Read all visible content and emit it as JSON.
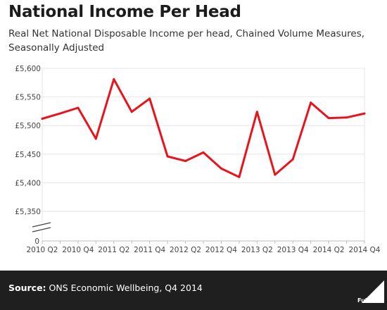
{
  "chart_data": {
    "type": "line",
    "title": "National Income Per Head",
    "subtitle": "Real Net National Disposable Income per head, Chained Volume Measures, Seasonally Adjusted",
    "x": [
      "2010 Q2",
      "2010 Q3",
      "2010 Q4",
      "2011 Q1",
      "2011 Q2",
      "2011 Q3",
      "2011 Q4",
      "2012 Q1",
      "2012 Q2",
      "2012 Q3",
      "2012 Q4",
      "2013 Q1",
      "2013 Q2",
      "2013 Q3",
      "2013 Q4",
      "2014 Q1",
      "2014 Q2",
      "2014 Q3",
      "2014 Q4"
    ],
    "x_tick_labels": [
      "2010 Q2",
      "2010 Q4",
      "2011 Q2",
      "2011 Q4",
      "2012 Q2",
      "2012 Q4",
      "2013 Q2",
      "2013 Q4",
      "2014 Q2",
      "2014 Q4"
    ],
    "series": [
      {
        "values": [
          5512,
          5521,
          5531,
          5477,
          5581,
          5524,
          5547,
          5446,
          5438,
          5453,
          5425,
          5410,
          5524,
          5414,
          5441,
          5540,
          5513,
          5514,
          5521
        ]
      }
    ],
    "y_tick_labels": [
      "0",
      "£5,350",
      "£5,400",
      "£5,450",
      "£5,500",
      "£5,550",
      "£5,600"
    ],
    "ylim": [
      5350,
      5600
    ],
    "axis_break": true,
    "grid": true,
    "line_color": "#e8141d"
  },
  "footer": {
    "source_label": "Source:",
    "source_text": "ONS Economic Wellbeing, Q4 2014",
    "logo_text": "Full Fact"
  }
}
